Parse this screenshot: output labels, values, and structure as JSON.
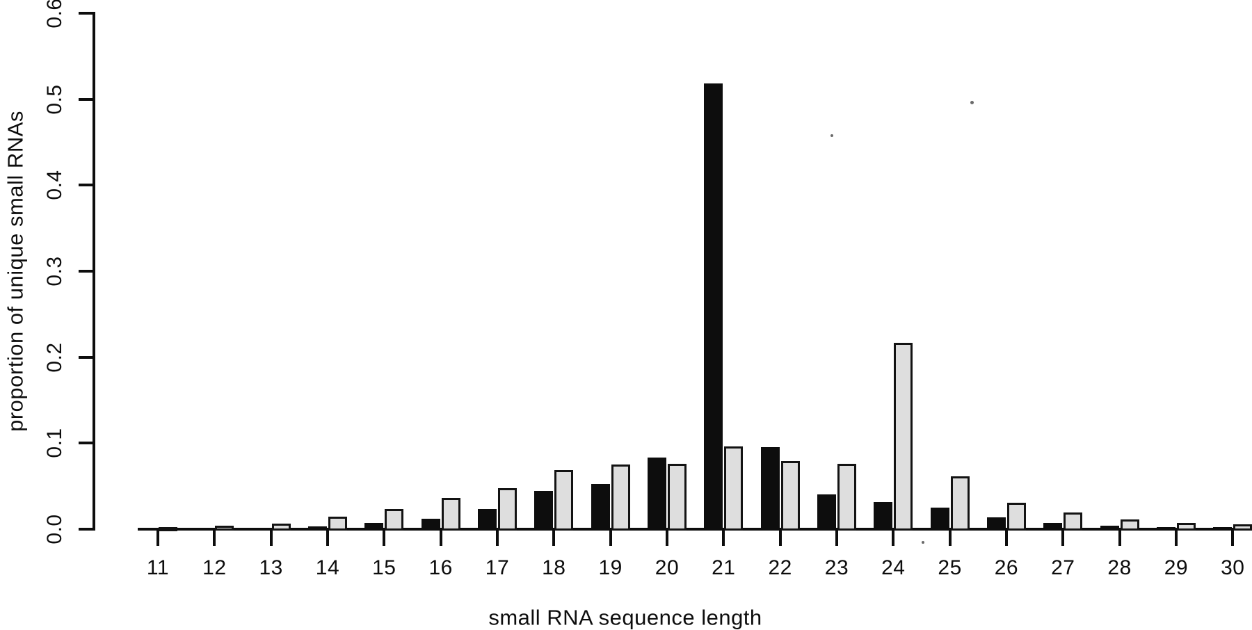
{
  "chart_data": {
    "type": "bar",
    "title": "",
    "xlabel": "small RNA sequence length",
    "ylabel": "proportion of unique small RNAs",
    "categories": [
      11,
      12,
      13,
      14,
      15,
      16,
      17,
      18,
      19,
      20,
      21,
      22,
      23,
      24,
      25,
      26,
      27,
      28,
      29,
      30
    ],
    "series": [
      {
        "name": "black",
        "color": "#0d0d0d",
        "values": [
          0.002,
          0.001,
          0.002,
          0.005,
          0.009,
          0.014,
          0.025,
          0.046,
          0.054,
          0.085,
          0.52,
          0.097,
          0.042,
          0.033,
          0.027,
          0.015,
          0.009,
          0.006,
          0.004,
          0.004
        ]
      },
      {
        "name": "gray",
        "color": "#dedede",
        "values": [
          0.004,
          0.006,
          0.008,
          0.016,
          0.025,
          0.038,
          0.049,
          0.07,
          0.077,
          0.078,
          0.098,
          0.081,
          0.078,
          0.218,
          0.063,
          0.032,
          0.021,
          0.013,
          0.009,
          0.007
        ]
      }
    ],
    "ylim": [
      0.0,
      0.6
    ],
    "ytick_labels": [
      "0.0",
      "0.1",
      "0.2",
      "0.3",
      "0.4",
      "0.5",
      "0.6"
    ],
    "grid": false,
    "legend": "none",
    "bar_outline_color": "#131313",
    "axis_color": "#0d0d0d",
    "background_color": "#ffffff"
  }
}
